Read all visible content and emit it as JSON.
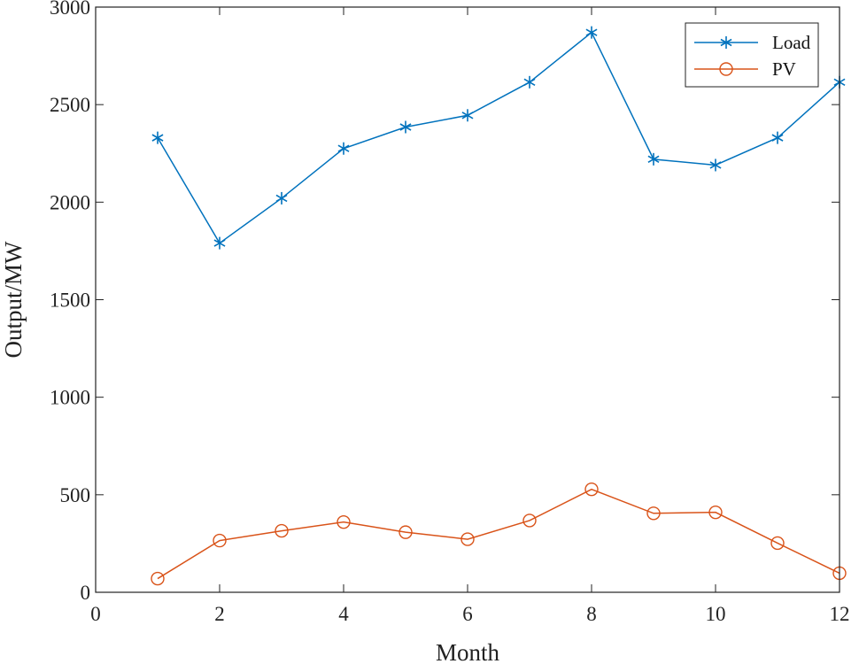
{
  "chart_data": {
    "type": "line",
    "title": "",
    "xlabel": "Month",
    "ylabel": "Output/MW",
    "xlim": [
      0,
      12
    ],
    "ylim": [
      0,
      3000
    ],
    "xticks": [
      0,
      2,
      4,
      6,
      8,
      10,
      12
    ],
    "yticks": [
      0,
      500,
      1000,
      1500,
      2000,
      2500,
      3000
    ],
    "grid": false,
    "legend_position": "top-right",
    "x": [
      1,
      2,
      3,
      4,
      5,
      6,
      7,
      8,
      9,
      10,
      11,
      12
    ],
    "series": [
      {
        "name": "Load",
        "marker": "asterisk",
        "color": "#0072BD",
        "values": [
          2330,
          1790,
          2020,
          2275,
          2385,
          2445,
          2615,
          2870,
          2220,
          2190,
          2330,
          2615
        ]
      },
      {
        "name": "PV",
        "marker": "circle",
        "color": "#D95319",
        "values": [
          70,
          265,
          315,
          360,
          308,
          272,
          368,
          528,
          405,
          410,
          252,
          98
        ]
      }
    ]
  }
}
